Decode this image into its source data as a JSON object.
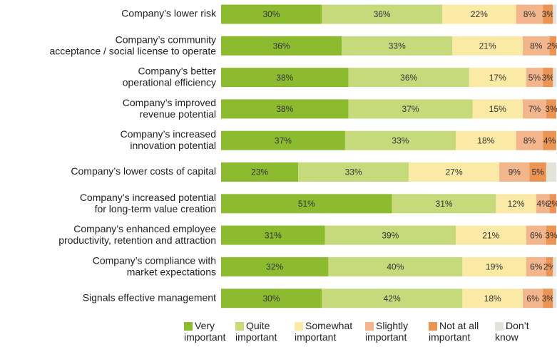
{
  "chart_data": {
    "type": "stacked-barh",
    "categories": [
      "Company’s lower risk",
      "Company’s community\nacceptance / social license to operate",
      "Company’s better\noperational efficiency",
      "Company’s improved\nrevenue potential",
      "Company’s increased\ninnovation potential",
      "Company’s lower costs of capital",
      "Company’s increased potential\nfor long-term value creation",
      "Company’s enhanced employee\nproductivity, retention and attraction",
      "Company’s compliance with\nmarket expectations",
      "Signals effective management"
    ],
    "xlim": [
      0,
      100
    ],
    "series": [
      {
        "name": "Very\nimportant",
        "color": "#8dbb2f",
        "values": [
          30,
          36,
          38,
          38,
          37,
          23,
          51,
          31,
          32,
          30
        ],
        "value_labels": [
          "30%",
          "36%",
          "38%",
          "38%",
          "37%",
          "23%",
          "51%",
          "31%",
          "32%",
          "30%"
        ]
      },
      {
        "name": "Quite\nimportant",
        "color": "#c6da7b",
        "values": [
          36,
          33,
          36,
          37,
          33,
          33,
          31,
          39,
          40,
          42
        ],
        "value_labels": [
          "36%",
          "33%",
          "36%",
          "37%",
          "33%",
          "33%",
          "31%",
          "39%",
          "40%",
          "42%"
        ]
      },
      {
        "name": "Somewhat\nimportant",
        "color": "#fbeaa5",
        "values": [
          22,
          21,
          17,
          15,
          18,
          27,
          12,
          21,
          19,
          18
        ],
        "value_labels": [
          "22%",
          "21%",
          "17%",
          "15%",
          "18%",
          "27%",
          "12%",
          "21%",
          "19%",
          "18%"
        ]
      },
      {
        "name": "Slightly\nimportant",
        "color": "#f3b58c",
        "values": [
          8,
          8,
          5,
          7,
          8,
          9,
          4,
          6,
          6,
          6
        ],
        "value_labels": [
          "8%",
          "8%",
          "5%",
          "7%",
          "8%",
          "9%",
          "4%",
          "6%",
          "6%",
          "6%"
        ]
      },
      {
        "name": "Not at all\nimportant",
        "color": "#ec9454",
        "values": [
          3,
          2,
          3,
          3,
          4,
          5,
          2,
          3,
          2,
          3
        ],
        "value_labels": [
          "3%",
          "2%",
          "3%",
          "3%",
          "4%",
          "5%",
          "2%",
          "3%",
          "2%",
          "3%"
        ]
      },
      {
        "name": "Don’t\nknow",
        "color": "#e4e3d9",
        "values": [
          1,
          0,
          1,
          0,
          0,
          3,
          0,
          0,
          1,
          1
        ]
      }
    ],
    "legend": "bottom"
  }
}
